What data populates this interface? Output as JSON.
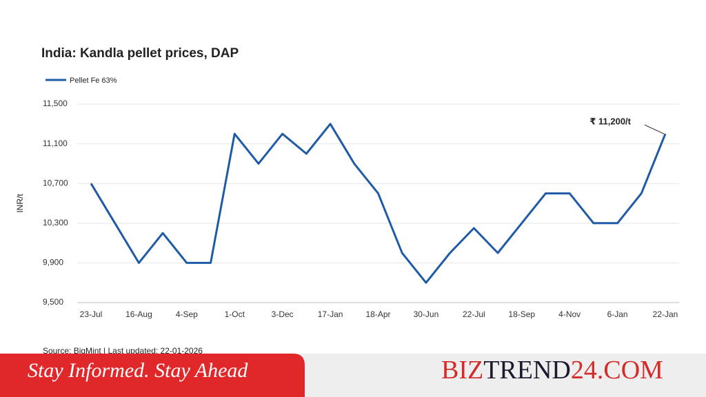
{
  "chart_data": {
    "type": "line",
    "title": "India: Kandla pellet prices, DAP",
    "y_label": "INR/t",
    "categories": [
      "23-Jul",
      null,
      "16-Aug",
      null,
      "4-Sep",
      null,
      "1-Oct",
      null,
      "3-Dec",
      null,
      "17-Jan",
      null,
      "18-Apr",
      null,
      "30-Jun",
      null,
      "22-Jul",
      null,
      "18-Sep",
      null,
      "4-Nov",
      null,
      "6-Jan",
      null,
      "22-Jan"
    ],
    "series": [
      {
        "name": "Pellet Fe 63%",
        "color": "#1f5aa6",
        "values": [
          10700,
          10300,
          9900,
          10200,
          9900,
          9900,
          11200,
          10900,
          11200,
          11000,
          11300,
          10900,
          10600,
          10000,
          9700,
          10000,
          10250,
          10000,
          10300,
          10600,
          10600,
          10300,
          10300,
          10600,
          11200
        ]
      }
    ],
    "ylim": [
      9500,
      11500
    ],
    "yticks": [
      {
        "value": 9500,
        "label": "9,500"
      },
      {
        "value": 9900,
        "label": "9,900"
      },
      {
        "value": 10300,
        "label": "10,300"
      },
      {
        "value": 10700,
        "label": "10,700"
      },
      {
        "value": 11100,
        "label": "11,100"
      },
      {
        "value": 11500,
        "label": "11,500"
      }
    ],
    "grid": true,
    "annotation": "₹ 11,200/t",
    "source": "Source: BigMint | Last updated: 22-01-2026"
  },
  "banner": {
    "tagline": "Stay Informed. Stay Ahead",
    "brand": [
      "BIZ",
      "TREND",
      "24",
      ".COM"
    ]
  }
}
